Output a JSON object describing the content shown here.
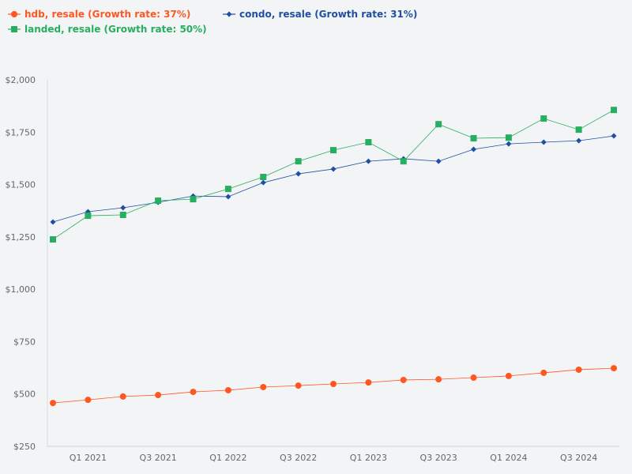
{
  "chart_data": {
    "type": "line",
    "x": [
      "Q4 2020",
      "Q1 2021",
      "Q2 2021",
      "Q3 2021",
      "Q4 2021",
      "Q1 2022",
      "Q2 2022",
      "Q3 2022",
      "Q4 2022",
      "Q1 2023",
      "Q2 2023",
      "Q3 2023",
      "Q4 2023",
      "Q1 2024",
      "Q2 2024",
      "Q3 2024",
      "Q4 2024"
    ],
    "x_tick_labels": [
      "Q1 2021",
      "Q3 2021",
      "Q1 2022",
      "Q3 2022",
      "Q1 2023",
      "Q3 2023",
      "Q1 2024",
      "Q3 2024"
    ],
    "y_tick_labels": [
      "$250",
      "$500",
      "$750",
      "$1,000",
      "$1,250",
      "$1,500",
      "$1,750",
      "$2,000"
    ],
    "ylim": [
      250,
      2000
    ],
    "grid": false,
    "legend_placement": "top-left",
    "series": [
      {
        "name": "hdb, resale (Growth rate: 37%)",
        "color": "#ff5722",
        "marker": "circle",
        "values": [
          457,
          472,
          488,
          495,
          510,
          518,
          533,
          540,
          548,
          555,
          567,
          570,
          578,
          586,
          601,
          616,
          623
        ]
      },
      {
        "name": "condo, resale (Growth rate: 31%)",
        "color": "#1f4fa3",
        "marker": "diamond",
        "values": [
          1321,
          1370,
          1389,
          1415,
          1445,
          1442,
          1509,
          1551,
          1574,
          1611,
          1623,
          1611,
          1668,
          1694,
          1702,
          1709,
          1732
        ]
      },
      {
        "name": "landed, resale (Growth rate: 50%)",
        "color": "#27ae60",
        "marker": "square",
        "values": [
          1238,
          1351,
          1355,
          1423,
          1430,
          1479,
          1536,
          1611,
          1664,
          1702,
          1611,
          1788,
          1721,
          1724,
          1815,
          1762,
          1856
        ]
      }
    ]
  }
}
